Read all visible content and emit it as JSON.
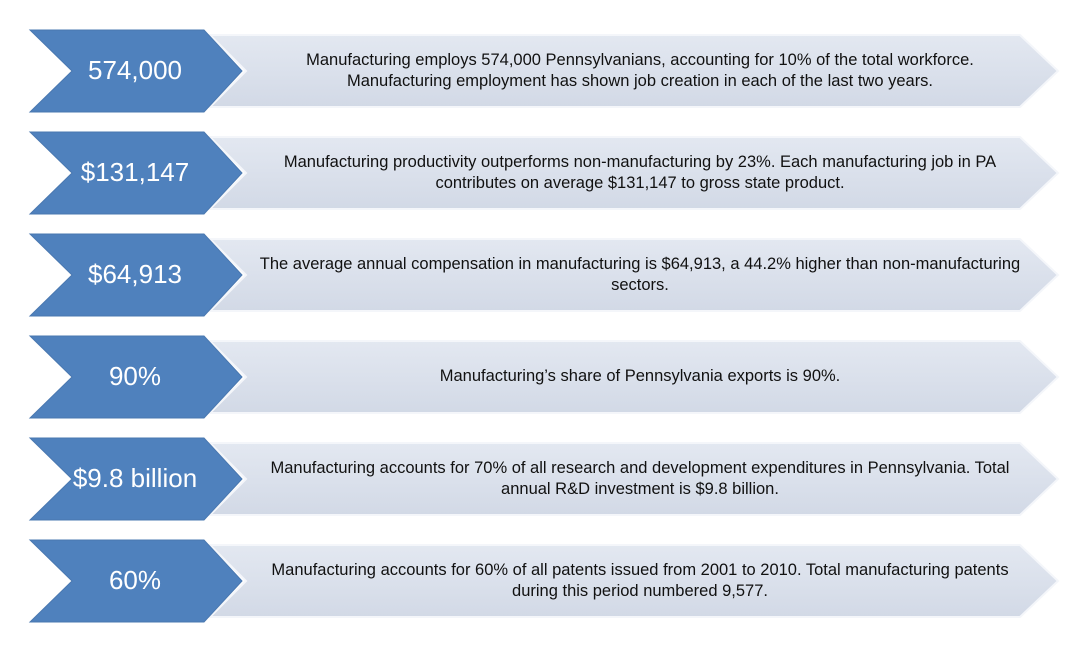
{
  "items": [
    {
      "value": "574,000",
      "text": "Manufacturing employs 574,000 Pennsylvanians, accounting for 10% of the total workforce.   Manufacturing employment has shown job creation in each of the last two years."
    },
    {
      "value": "$131,147",
      "text": "Manufacturing productivity outperforms non-manufacturing by 23%.  Each manufacturing job in PA contributes on average $131,147 to gross state product."
    },
    {
      "value": "$64,913",
      "text": "The average annual compensation in manufacturing is $64,913, a 44.2% higher than non-manufacturing sectors."
    },
    {
      "value": "90%",
      "text": "Manufacturing’s share of Pennsylvania exports is 90%."
    },
    {
      "value": "$9.8 billion",
      "text": "Manufacturing accounts for 70% of all research and development expenditures in Pennsylvania.  Total annual R&D investment is $9.8 billion."
    },
    {
      "value": "60%",
      "text": "Manufacturing accounts for 60% of all patents issued from 2001 to 2010.  Total manufacturing patents during this period numbered 9,577."
    }
  ]
}
